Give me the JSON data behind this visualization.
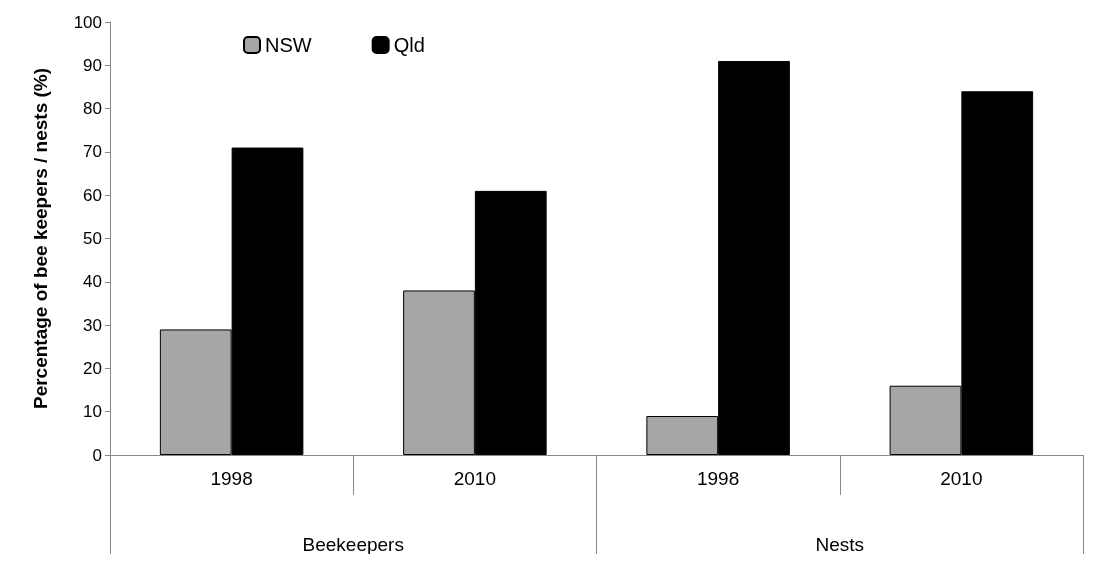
{
  "chart_data": {
    "type": "bar",
    "ylabel": "Percentage of bee keepers / nests (%)",
    "categories": [
      "1998",
      "2010",
      "1998",
      "2010"
    ],
    "annotations": [
      "Beekeepers",
      "Nests"
    ],
    "series": [
      {
        "name": "NSW",
        "color": "#a6a6a6",
        "values": [
          29,
          38,
          9,
          16
        ]
      },
      {
        "name": "Qld",
        "color": "#000000",
        "values": [
          71,
          61,
          91,
          84
        ]
      }
    ],
    "ylim": [
      0,
      100
    ],
    "yticks": [
      0,
      10,
      20,
      30,
      40,
      50,
      60,
      70,
      80,
      90,
      100
    ],
    "grid": false,
    "legend": "top left"
  }
}
